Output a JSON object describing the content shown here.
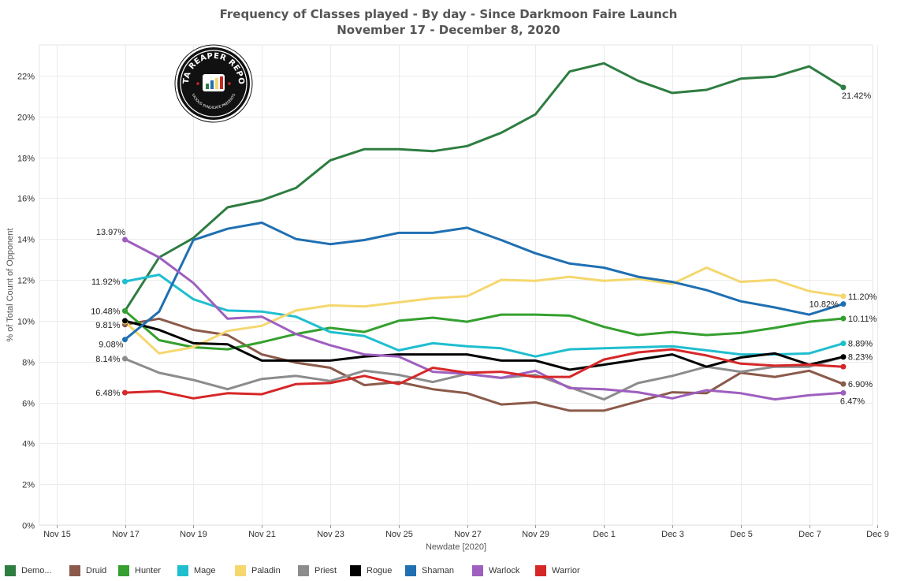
{
  "title": "Frequency of Classes played - By day - Since Darkmoon Faire Launch",
  "subtitle": "November 17 - December 8, 2020",
  "logo": {
    "text": "DATA REAPER REPORT",
    "subtext": "VICIOUS SYNDICATE PRESENTS",
    "bg_color": "#111111",
    "accent_color": "#c62828"
  },
  "chart_data": {
    "type": "line",
    "title": "Frequency of Classes played - By day - Since Darkmoon Faire Launch",
    "subtitle": "November 17 - December 8, 2020",
    "xlabel": "Newdate [2020]",
    "ylabel": "% of Total Count of Opponent",
    "x_ticks": [
      "Nov 15",
      "Nov 17",
      "Nov 19",
      "Nov 21",
      "Nov 23",
      "Nov 25",
      "Nov 27",
      "Nov 29",
      "Dec 1",
      "Dec 3",
      "Dec 5",
      "Dec 7",
      "Dec 9"
    ],
    "y_ticks": [
      "0%",
      "2%",
      "4%",
      "6%",
      "8%",
      "10%",
      "12%",
      "14%",
      "16%",
      "18%",
      "20%",
      "22%"
    ],
    "ylim": [
      0,
      23.5
    ],
    "grid": true,
    "legend_position": "bottom",
    "x": [
      "Nov 17",
      "Nov 18",
      "Nov 19",
      "Nov 20",
      "Nov 21",
      "Nov 22",
      "Nov 23",
      "Nov 24",
      "Nov 25",
      "Nov 26",
      "Nov 27",
      "Nov 28",
      "Nov 29",
      "Nov 30",
      "Dec 1",
      "Dec 2",
      "Dec 3",
      "Dec 4",
      "Dec 5",
      "Dec 6",
      "Dec 7",
      "Dec 8"
    ],
    "series": [
      {
        "name": "Demo...",
        "color": "#2e7d41",
        "values": [
          10.48,
          13.1,
          14.05,
          15.55,
          15.9,
          16.5,
          17.85,
          18.4,
          18.4,
          18.3,
          18.55,
          19.2,
          20.1,
          22.2,
          22.6,
          21.75,
          21.15,
          21.3,
          21.85,
          21.95,
          22.45,
          21.42
        ],
        "start_label": "",
        "end_label": "21.42%"
      },
      {
        "name": "Druid",
        "color": "#8b5a4a",
        "values": [
          9.81,
          10.1,
          9.55,
          9.3,
          8.35,
          7.95,
          7.7,
          6.85,
          7.0,
          6.65,
          6.45,
          5.9,
          6.0,
          5.6,
          5.6,
          6.05,
          6.5,
          6.45,
          7.45,
          7.25,
          7.55,
          6.9
        ],
        "start_label": "9.81%",
        "end_label": "6.90%"
      },
      {
        "name": "Hunter",
        "color": "#35a02f",
        "values": [
          10.48,
          9.05,
          8.7,
          8.6,
          8.95,
          9.35,
          9.65,
          9.45,
          10.0,
          10.15,
          9.95,
          10.3,
          10.3,
          10.25,
          9.7,
          9.3,
          9.45,
          9.3,
          9.4,
          9.65,
          9.95,
          10.11
        ],
        "start_label": "10.48%",
        "end_label": "10.11%"
      },
      {
        "name": "Mage",
        "color": "#1fbecf",
        "values": [
          11.92,
          12.25,
          11.05,
          10.5,
          10.45,
          10.2,
          9.45,
          9.25,
          8.55,
          8.9,
          8.75,
          8.65,
          8.25,
          8.6,
          8.65,
          8.7,
          8.75,
          8.55,
          8.35,
          8.35,
          8.4,
          8.89
        ],
        "start_label": "11.92%",
        "end_label": "8.89%"
      },
      {
        "name": "Paladin",
        "color": "#f5d76e",
        "values": [
          9.95,
          8.4,
          8.7,
          9.5,
          9.75,
          10.5,
          10.75,
          10.7,
          10.9,
          11.1,
          11.2,
          12.0,
          11.95,
          12.15,
          11.95,
          12.05,
          11.8,
          12.6,
          11.9,
          12.0,
          11.45,
          11.2
        ],
        "start_label": "",
        "end_label": "11.20%"
      },
      {
        "name": "Priest",
        "color": "#8c8c8c",
        "values": [
          8.14,
          7.45,
          7.1,
          6.65,
          7.15,
          7.3,
          7.05,
          7.55,
          7.35,
          7.0,
          7.4,
          7.2,
          7.35,
          6.75,
          6.15,
          6.95,
          7.3,
          7.75,
          7.5,
          7.75,
          7.75,
          8.23
        ],
        "start_label": "8.14%",
        "end_label": ""
      },
      {
        "name": "Rogue",
        "color": "#000000",
        "values": [
          10.0,
          9.55,
          8.9,
          8.85,
          8.05,
          8.05,
          8.05,
          8.25,
          8.35,
          8.35,
          8.35,
          8.05,
          8.05,
          7.6,
          7.85,
          8.1,
          8.35,
          7.75,
          8.2,
          8.4,
          7.85,
          8.23
        ],
        "start_label": "",
        "end_label": "8.23%"
      },
      {
        "name": "Shaman",
        "color": "#1f6fb2",
        "values": [
          9.08,
          10.45,
          13.95,
          14.5,
          14.8,
          14.0,
          13.75,
          13.95,
          14.3,
          14.3,
          14.55,
          13.95,
          13.3,
          12.8,
          12.6,
          12.15,
          11.9,
          11.5,
          10.95,
          10.65,
          10.3,
          10.82
        ],
        "start_label": "9.08%",
        "end_label": "10.82%"
      },
      {
        "name": "Warlock",
        "color": "#9e5fbf",
        "values": [
          13.97,
          13.1,
          11.85,
          10.1,
          10.2,
          9.35,
          8.8,
          8.35,
          8.25,
          7.5,
          7.4,
          7.2,
          7.55,
          6.7,
          6.65,
          6.5,
          6.2,
          6.6,
          6.45,
          6.15,
          6.35,
          6.47
        ],
        "start_label": "13.97%",
        "end_label": "6.47%"
      },
      {
        "name": "Warrior",
        "color": "#d62728",
        "values": [
          6.48,
          6.55,
          6.2,
          6.45,
          6.4,
          6.9,
          6.95,
          7.3,
          6.9,
          7.7,
          7.45,
          7.5,
          7.25,
          7.25,
          8.1,
          8.45,
          8.6,
          8.3,
          7.9,
          7.8,
          7.85,
          7.75
        ],
        "start_label": "6.48%",
        "end_label": ""
      }
    ]
  }
}
